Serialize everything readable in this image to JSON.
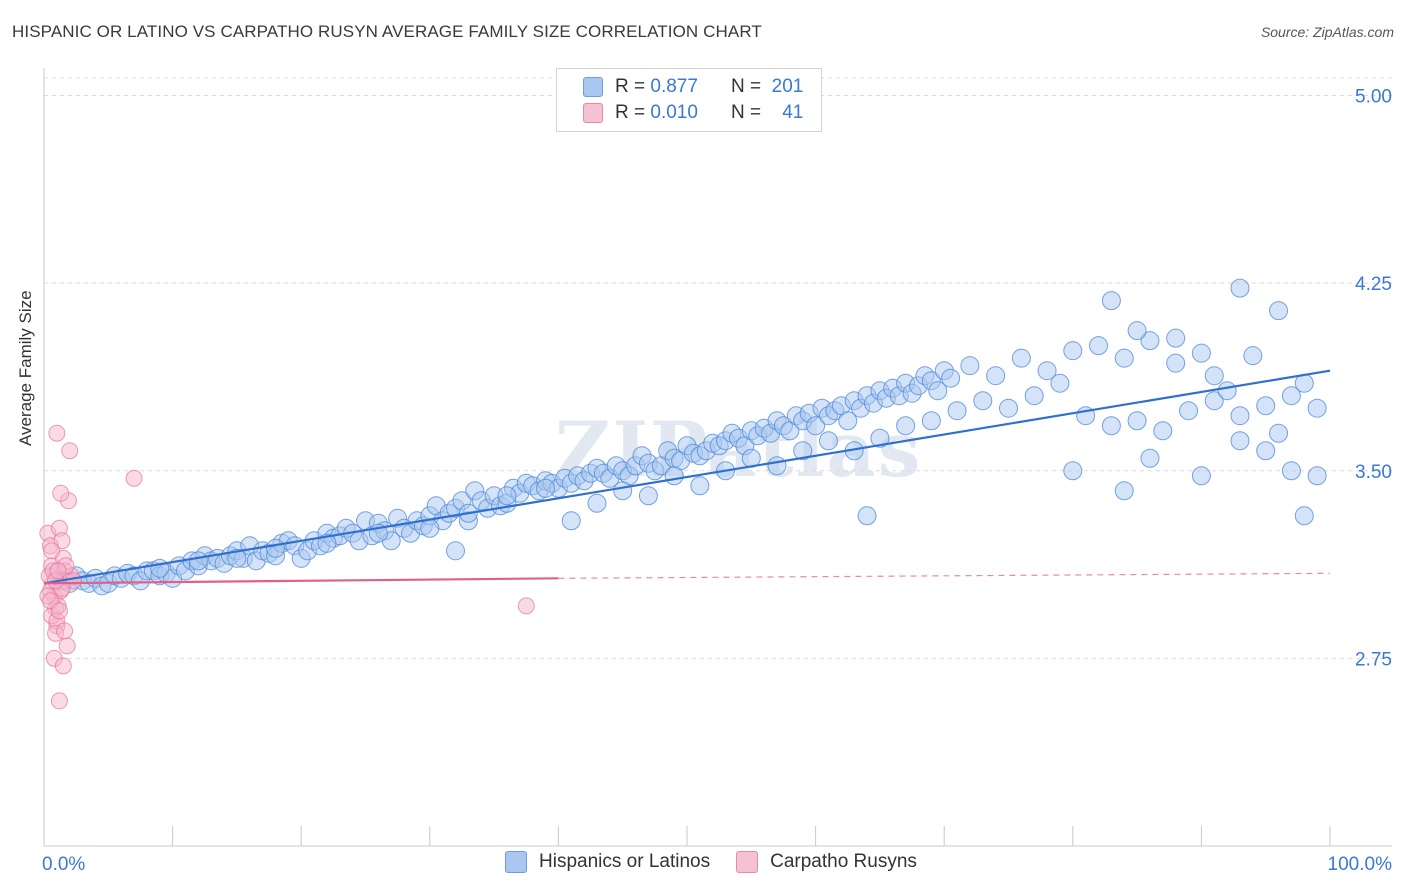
{
  "title": "HISPANIC OR LATINO VS CARPATHO RUSYN AVERAGE FAMILY SIZE CORRELATION CHART",
  "source": "Source: ZipAtlas.com",
  "watermark": "ZIPatlas",
  "legend": {
    "rows": [
      {
        "r_label": "R =",
        "r_value": "0.877",
        "n_label": "N =",
        "n_value": "201"
      },
      {
        "r_label": "R =",
        "r_value": "0.010",
        "n_label": "N =",
        "n_value": "41"
      }
    ]
  },
  "bottom_legend": [
    "Hispanics or Latinos",
    "Carpatho Rusyns"
  ],
  "chart_data": {
    "type": "scatter",
    "ylabel": "Average Family Size",
    "xlabel": "",
    "x_tick_labels": [
      "0.0%",
      "100.0%"
    ],
    "y_tick_labels": [
      "2.75",
      "3.50",
      "4.25",
      "5.00"
    ],
    "y_ticks": [
      2.75,
      3.5,
      4.25,
      5.0
    ],
    "xlim": [
      0,
      100
    ],
    "ylim": [
      2.0,
      5.07
    ],
    "grid": true,
    "colors": {
      "blue": "#4a86d8",
      "blue_fill": "#a9c7f0",
      "pink": "#e8709a",
      "pink_fill": "#f5b6cb",
      "tick_blue": "#3a78d6"
    },
    "series": [
      {
        "name": "Hispanics or Latinos",
        "trend": {
          "x": [
            0,
            100
          ],
          "y": [
            3.05,
            3.9
          ]
        },
        "points": [
          [
            1,
            3.09
          ],
          [
            1.5,
            3.06
          ],
          [
            2,
            3.05
          ],
          [
            2.5,
            3.08
          ],
          [
            3,
            3.06
          ],
          [
            3.5,
            3.05
          ],
          [
            4,
            3.07
          ],
          [
            4.5,
            3.04
          ],
          [
            5,
            3.05
          ],
          [
            5.5,
            3.08
          ],
          [
            6,
            3.07
          ],
          [
            6.5,
            3.09
          ],
          [
            7,
            3.08
          ],
          [
            7.5,
            3.06
          ],
          [
            8,
            3.1
          ],
          [
            8.5,
            3.1
          ],
          [
            9,
            3.08
          ],
          [
            9.5,
            3.09
          ],
          [
            10,
            3.07
          ],
          [
            10.5,
            3.12
          ],
          [
            11,
            3.1
          ],
          [
            11.5,
            3.14
          ],
          [
            12,
            3.12
          ],
          [
            12.5,
            3.16
          ],
          [
            13,
            3.14
          ],
          [
            13.5,
            3.15
          ],
          [
            14,
            3.13
          ],
          [
            14.5,
            3.16
          ],
          [
            15,
            3.18
          ],
          [
            15.5,
            3.15
          ],
          [
            16,
            3.2
          ],
          [
            16.5,
            3.14
          ],
          [
            17,
            3.18
          ],
          [
            17.5,
            3.17
          ],
          [
            18,
            3.16
          ],
          [
            18.5,
            3.21
          ],
          [
            19,
            3.22
          ],
          [
            19.5,
            3.2
          ],
          [
            20,
            3.15
          ],
          [
            20.5,
            3.18
          ],
          [
            21,
            3.22
          ],
          [
            21.5,
            3.2
          ],
          [
            22,
            3.25
          ],
          [
            22.5,
            3.23
          ],
          [
            23,
            3.24
          ],
          [
            23.5,
            3.27
          ],
          [
            24,
            3.25
          ],
          [
            24.5,
            3.22
          ],
          [
            25,
            3.3
          ],
          [
            25.5,
            3.24
          ],
          [
            26,
            3.29
          ],
          [
            26.5,
            3.26
          ],
          [
            27,
            3.22
          ],
          [
            27.5,
            3.31
          ],
          [
            28,
            3.27
          ],
          [
            28.5,
            3.25
          ],
          [
            29,
            3.3
          ],
          [
            29.5,
            3.28
          ],
          [
            30,
            3.32
          ],
          [
            30.5,
            3.36
          ],
          [
            31,
            3.3
          ],
          [
            31.5,
            3.33
          ],
          [
            32,
            3.35
          ],
          [
            32.5,
            3.38
          ],
          [
            33,
            3.3
          ],
          [
            33.5,
            3.42
          ],
          [
            34,
            3.38
          ],
          [
            34.5,
            3.35
          ],
          [
            35,
            3.4
          ],
          [
            35.5,
            3.36
          ],
          [
            36,
            3.37
          ],
          [
            36.5,
            3.43
          ],
          [
            37,
            3.41
          ],
          [
            37.5,
            3.45
          ],
          [
            38,
            3.44
          ],
          [
            38.5,
            3.42
          ],
          [
            39,
            3.46
          ],
          [
            39.5,
            3.45
          ],
          [
            40,
            3.43
          ],
          [
            40.5,
            3.47
          ],
          [
            41,
            3.45
          ],
          [
            41.5,
            3.48
          ],
          [
            42,
            3.46
          ],
          [
            42.5,
            3.49
          ],
          [
            43,
            3.51
          ],
          [
            43.5,
            3.49
          ],
          [
            44,
            3.47
          ],
          [
            44.5,
            3.52
          ],
          [
            45,
            3.5
          ],
          [
            45.5,
            3.48
          ],
          [
            46,
            3.52
          ],
          [
            46.5,
            3.56
          ],
          [
            47,
            3.53
          ],
          [
            47.5,
            3.5
          ],
          [
            48,
            3.52
          ],
          [
            48.5,
            3.58
          ],
          [
            49,
            3.55
          ],
          [
            49.5,
            3.54
          ],
          [
            50,
            3.6
          ],
          [
            50.5,
            3.57
          ],
          [
            51,
            3.56
          ],
          [
            51.5,
            3.58
          ],
          [
            52,
            3.61
          ],
          [
            52.5,
            3.6
          ],
          [
            53,
            3.62
          ],
          [
            53.5,
            3.65
          ],
          [
            54,
            3.63
          ],
          [
            54.5,
            3.6
          ],
          [
            55,
            3.66
          ],
          [
            55.5,
            3.64
          ],
          [
            56,
            3.67
          ],
          [
            56.5,
            3.65
          ],
          [
            57,
            3.7
          ],
          [
            57.5,
            3.68
          ],
          [
            58,
            3.66
          ],
          [
            58.5,
            3.72
          ],
          [
            59,
            3.7
          ],
          [
            59.5,
            3.73
          ],
          [
            60,
            3.68
          ],
          [
            60.5,
            3.75
          ],
          [
            61,
            3.72
          ],
          [
            61.5,
            3.74
          ],
          [
            62,
            3.76
          ],
          [
            62.5,
            3.7
          ],
          [
            63,
            3.78
          ],
          [
            63.5,
            3.75
          ],
          [
            64,
            3.8
          ],
          [
            64.5,
            3.77
          ],
          [
            65,
            3.82
          ],
          [
            65.5,
            3.79
          ],
          [
            66,
            3.83
          ],
          [
            66.5,
            3.8
          ],
          [
            67,
            3.85
          ],
          [
            67.5,
            3.81
          ],
          [
            68,
            3.84
          ],
          [
            68.5,
            3.88
          ],
          [
            69,
            3.86
          ],
          [
            69.5,
            3.82
          ],
          [
            70,
            3.9
          ],
          [
            70.5,
            3.87
          ],
          [
            9,
            3.11
          ],
          [
            12,
            3.14
          ],
          [
            15,
            3.15
          ],
          [
            18,
            3.19
          ],
          [
            22,
            3.21
          ],
          [
            26,
            3.25
          ],
          [
            30,
            3.27
          ],
          [
            33,
            3.33
          ],
          [
            36,
            3.4
          ],
          [
            39,
            3.43
          ],
          [
            41,
            3.3
          ],
          [
            43,
            3.37
          ],
          [
            45,
            3.42
          ],
          [
            47,
            3.4
          ],
          [
            49,
            3.48
          ],
          [
            51,
            3.44
          ],
          [
            53,
            3.5
          ],
          [
            55,
            3.55
          ],
          [
            57,
            3.52
          ],
          [
            59,
            3.58
          ],
          [
            61,
            3.62
          ],
          [
            63,
            3.58
          ],
          [
            65,
            3.63
          ],
          [
            67,
            3.68
          ],
          [
            69,
            3.7
          ],
          [
            71,
            3.74
          ],
          [
            73,
            3.78
          ],
          [
            75,
            3.75
          ],
          [
            77,
            3.8
          ],
          [
            79,
            3.85
          ],
          [
            72,
            3.92
          ],
          [
            74,
            3.88
          ],
          [
            76,
            3.95
          ],
          [
            78,
            3.9
          ],
          [
            80,
            3.98
          ],
          [
            82,
            4.0
          ],
          [
            84,
            3.95
          ],
          [
            86,
            4.02
          ],
          [
            88,
            3.93
          ],
          [
            90,
            3.97
          ],
          [
            81,
            3.72
          ],
          [
            83,
            3.68
          ],
          [
            85,
            3.7
          ],
          [
            87,
            3.66
          ],
          [
            89,
            3.74
          ],
          [
            91,
            3.78
          ],
          [
            93,
            3.72
          ],
          [
            95,
            3.76
          ],
          [
            97,
            3.8
          ],
          [
            99,
            3.75
          ],
          [
            80,
            3.5
          ],
          [
            84,
            3.42
          ],
          [
            86,
            3.55
          ],
          [
            90,
            3.48
          ],
          [
            93,
            3.62
          ],
          [
            95,
            3.58
          ],
          [
            97,
            3.5
          ],
          [
            98,
            3.32
          ],
          [
            99,
            3.48
          ],
          [
            96,
            3.65
          ],
          [
            83,
            4.18
          ],
          [
            93,
            4.23
          ],
          [
            96,
            4.14
          ],
          [
            85,
            4.06
          ],
          [
            88,
            4.03
          ],
          [
            94,
            3.96
          ],
          [
            91,
            3.88
          ],
          [
            92,
            3.82
          ],
          [
            98,
            3.85
          ],
          [
            64,
            3.32
          ],
          [
            32,
            3.18
          ]
        ]
      },
      {
        "name": "Carpatho Rusyns",
        "trend": {
          "x": [
            0,
            40
          ],
          "y": [
            3.05,
            3.07
          ],
          "dashed_to": [
            100,
            3.09
          ]
        },
        "points": [
          [
            0.3,
            3.25
          ],
          [
            0.5,
            3.2
          ],
          [
            0.6,
            3.12
          ],
          [
            0.7,
            3.05
          ],
          [
            0.8,
            3.0
          ],
          [
            0.9,
            2.95
          ],
          [
            1.0,
            2.88
          ],
          [
            0.4,
            3.08
          ],
          [
            0.5,
            3.02
          ],
          [
            0.6,
            2.92
          ],
          [
            1.2,
            3.27
          ],
          [
            1.4,
            3.22
          ],
          [
            1.5,
            3.15
          ],
          [
            1.6,
            3.1
          ],
          [
            1.7,
            3.06
          ],
          [
            1.3,
            3.02
          ],
          [
            1.1,
            2.96
          ],
          [
            1.0,
            2.9
          ],
          [
            0.9,
            2.85
          ],
          [
            0.8,
            2.75
          ],
          [
            1.5,
            2.72
          ],
          [
            1.2,
            2.58
          ],
          [
            1.8,
            2.8
          ],
          [
            1.6,
            2.86
          ],
          [
            1.9,
            3.38
          ],
          [
            2.0,
            3.58
          ],
          [
            1.0,
            3.65
          ],
          [
            1.3,
            3.41
          ],
          [
            0.6,
            3.18
          ],
          [
            0.7,
            3.1
          ],
          [
            2.1,
            3.08
          ],
          [
            2.3,
            3.06
          ],
          [
            1.4,
            3.03
          ],
          [
            0.9,
            3.06
          ],
          [
            1.7,
            3.12
          ],
          [
            1.1,
            3.1
          ],
          [
            0.3,
            3.0
          ],
          [
            7.0,
            3.47
          ],
          [
            37.5,
            2.96
          ],
          [
            0.5,
            2.98
          ],
          [
            1.2,
            2.94
          ]
        ]
      }
    ]
  }
}
